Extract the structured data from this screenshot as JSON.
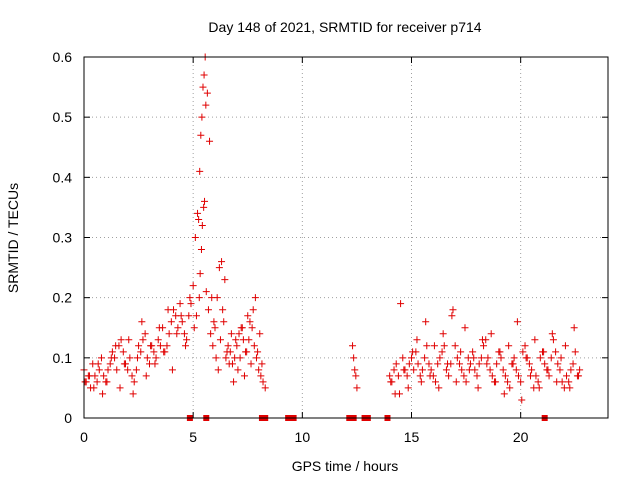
{
  "chart_data": {
    "type": "scatter",
    "title": "Day 148 of 2021, SRMTID for receiver p714",
    "xlabel": "GPS time / hours",
    "ylabel": "SRMTID / TECUs",
    "xlim": [
      0,
      24
    ],
    "ylim": [
      0,
      0.6
    ],
    "xticks": [
      0,
      5,
      10,
      15,
      20
    ],
    "xtick_labels": [
      "0",
      "5",
      "10",
      "15",
      "20"
    ],
    "yticks": [
      0,
      0.1,
      0.2,
      0.3,
      0.4,
      0.5,
      0.6
    ],
    "ytick_labels": [
      "0",
      "0.1",
      "0.2",
      "0.3",
      "0.4",
      "0.5",
      "0.6"
    ],
    "grid": true,
    "marker": "+",
    "color": "#e00000",
    "series": [
      {
        "name": "SRMTID",
        "x": [
          0.0,
          0.1,
          0.2,
          0.3,
          0.4,
          0.5,
          0.6,
          0.7,
          0.8,
          0.9,
          1.0,
          1.1,
          1.2,
          1.3,
          1.4,
          1.5,
          1.6,
          1.7,
          1.8,
          1.9,
          2.0,
          2.1,
          2.2,
          2.3,
          2.4,
          2.5,
          2.6,
          2.7,
          2.8,
          2.9,
          3.0,
          3.1,
          3.2,
          3.3,
          3.4,
          3.5,
          3.6,
          3.7,
          3.8,
          3.9,
          4.0,
          4.1,
          4.2,
          4.3,
          4.4,
          4.5,
          4.6,
          4.7,
          4.8,
          4.9,
          5.0,
          5.1,
          5.2,
          5.25,
          5.3,
          5.35,
          5.4,
          5.45,
          5.5,
          5.55,
          5.6,
          5.7,
          5.8,
          5.9,
          6.0,
          6.1,
          6.2,
          6.3,
          6.4,
          6.5,
          6.6,
          6.7,
          6.8,
          6.9,
          7.0,
          7.1,
          7.2,
          7.3,
          7.4,
          7.5,
          7.6,
          7.7,
          7.8,
          7.9,
          8.0,
          8.1,
          8.2,
          8.3,
          12.3,
          12.35,
          12.4,
          12.45,
          12.5,
          14.0,
          14.1,
          14.2,
          14.3,
          14.4,
          14.5,
          14.6,
          14.7,
          14.8,
          14.9,
          15.0,
          15.1,
          15.2,
          15.3,
          15.4,
          15.5,
          15.6,
          15.7,
          15.8,
          15.9,
          16.0,
          16.1,
          16.2,
          16.3,
          16.4,
          16.5,
          16.6,
          16.7,
          16.8,
          16.9,
          17.0,
          17.1,
          17.2,
          17.3,
          17.4,
          17.5,
          17.6,
          17.7,
          17.8,
          17.9,
          18.0,
          18.1,
          18.2,
          18.3,
          18.4,
          18.5,
          18.6,
          18.7,
          18.8,
          18.9,
          19.0,
          19.1,
          19.2,
          19.3,
          19.4,
          19.5,
          19.6,
          19.7,
          19.8,
          19.9,
          20.0,
          20.1,
          20.2,
          20.3,
          20.4,
          20.5,
          20.6,
          20.7,
          20.8,
          20.9,
          21.0,
          21.1,
          21.2,
          21.3,
          21.4,
          21.5,
          21.6,
          21.7,
          21.8,
          21.9,
          22.0,
          22.1,
          22.2,
          22.3,
          22.4,
          22.5,
          22.6,
          22.7,
          0.05,
          0.25,
          0.45,
          0.65,
          0.85,
          1.05,
          1.25,
          1.45,
          1.65,
          1.85,
          2.05,
          2.25,
          2.45,
          2.65,
          2.85,
          3.05,
          3.25,
          3.45,
          3.65,
          3.85,
          4.05,
          4.25,
          4.45,
          4.65,
          4.85,
          5.05,
          5.15,
          5.28,
          5.32,
          5.38,
          5.42,
          5.48,
          5.52,
          5.58,
          5.65,
          5.75,
          5.85,
          5.95,
          6.05,
          6.15,
          6.25,
          6.35,
          6.45,
          6.55,
          6.65,
          6.75,
          6.85,
          6.95,
          7.05,
          7.15,
          7.25,
          7.35,
          7.45,
          7.55,
          7.65,
          7.75,
          7.85,
          7.95,
          8.05,
          8.15,
          14.05,
          14.25,
          14.45,
          14.65,
          14.85,
          15.05,
          15.25,
          15.45,
          15.65,
          15.85,
          16.05,
          16.25,
          16.45,
          16.65,
          16.85,
          17.05,
          17.25,
          17.45,
          17.65,
          17.85,
          18.05,
          18.25,
          18.45,
          18.65,
          18.85,
          19.05,
          19.25,
          19.45,
          19.65,
          19.85,
          20.05,
          20.25,
          20.45,
          20.65,
          20.85,
          21.05,
          21.25,
          21.45,
          21.65,
          21.85,
          22.05,
          22.25,
          22.45,
          22.65
        ],
        "y": [
          0.08,
          0.06,
          0.07,
          0.05,
          0.09,
          0.07,
          0.06,
          0.08,
          0.1,
          0.07,
          0.06,
          0.08,
          0.09,
          0.11,
          0.1,
          0.08,
          0.12,
          0.13,
          0.11,
          0.09,
          0.08,
          0.1,
          0.07,
          0.06,
          0.08,
          0.12,
          0.11,
          0.13,
          0.14,
          0.1,
          0.09,
          0.12,
          0.11,
          0.1,
          0.13,
          0.12,
          0.15,
          0.11,
          0.12,
          0.14,
          0.16,
          0.18,
          0.17,
          0.15,
          0.19,
          0.16,
          0.14,
          0.13,
          0.17,
          0.19,
          0.22,
          0.3,
          0.34,
          0.33,
          0.41,
          0.47,
          0.5,
          0.55,
          0.57,
          0.6,
          0.21,
          0.18,
          0.14,
          0.12,
          0.15,
          0.2,
          0.25,
          0.26,
          0.16,
          0.1,
          0.12,
          0.11,
          0.09,
          0.1,
          0.12,
          0.14,
          0.15,
          0.13,
          0.11,
          0.17,
          0.16,
          0.15,
          0.12,
          0.1,
          0.08,
          0.07,
          0.06,
          0.05,
          0.12,
          0.1,
          0.08,
          0.07,
          0.05,
          0.07,
          0.06,
          0.08,
          0.09,
          0.07,
          0.19,
          0.1,
          0.08,
          0.07,
          0.09,
          0.1,
          0.08,
          0.11,
          0.09,
          0.07,
          0.08,
          0.1,
          0.12,
          0.09,
          0.08,
          0.07,
          0.06,
          0.09,
          0.1,
          0.11,
          0.12,
          0.08,
          0.07,
          0.09,
          0.18,
          0.12,
          0.1,
          0.09,
          0.08,
          0.07,
          0.06,
          0.1,
          0.09,
          0.11,
          0.08,
          0.07,
          0.09,
          0.1,
          0.12,
          0.13,
          0.1,
          0.08,
          0.07,
          0.06,
          0.09,
          0.11,
          0.1,
          0.08,
          0.07,
          0.06,
          0.05,
          0.09,
          0.1,
          0.08,
          0.07,
          0.06,
          0.11,
          0.12,
          0.1,
          0.09,
          0.08,
          0.05,
          0.07,
          0.06,
          0.1,
          0.11,
          0.09,
          0.08,
          0.07,
          0.1,
          0.13,
          0.11,
          0.09,
          0.08,
          0.06,
          0.05,
          0.07,
          0.06,
          0.08,
          0.09,
          0.11,
          0.07,
          0.08,
          0.06,
          0.07,
          0.05,
          0.09,
          0.04,
          0.06,
          0.1,
          0.12,
          0.05,
          0.09,
          0.13,
          0.04,
          0.1,
          0.16,
          0.07,
          0.12,
          0.09,
          0.15,
          0.11,
          0.18,
          0.08,
          0.14,
          0.17,
          0.12,
          0.2,
          0.15,
          0.17,
          0.2,
          0.24,
          0.28,
          0.32,
          0.35,
          0.36,
          0.52,
          0.54,
          0.46,
          0.2,
          0.16,
          0.1,
          0.08,
          0.13,
          0.18,
          0.23,
          0.11,
          0.09,
          0.14,
          0.06,
          0.13,
          0.08,
          0.1,
          0.15,
          0.07,
          0.11,
          0.13,
          0.09,
          0.18,
          0.2,
          0.11,
          0.14,
          0.09,
          0.06,
          0.04,
          0.04,
          0.08,
          0.05,
          0.11,
          0.13,
          0.06,
          0.16,
          0.07,
          0.12,
          0.05,
          0.14,
          0.09,
          0.17,
          0.06,
          0.11,
          0.15,
          0.08,
          0.1,
          0.05,
          0.13,
          0.09,
          0.14,
          0.06,
          0.11,
          0.04,
          0.12,
          0.09,
          0.16,
          0.03,
          0.1,
          0.07,
          0.13,
          0.05,
          0.11,
          0.08,
          0.14,
          0.06,
          0.1,
          0.12,
          0.05,
          0.15,
          0.07
        ]
      }
    ],
    "gap_markers_x": [
      4.85,
      5.6,
      8.15,
      8.3,
      9.35,
      9.6,
      12.15,
      12.35,
      12.85,
      13.0,
      13.9,
      21.1
    ]
  }
}
